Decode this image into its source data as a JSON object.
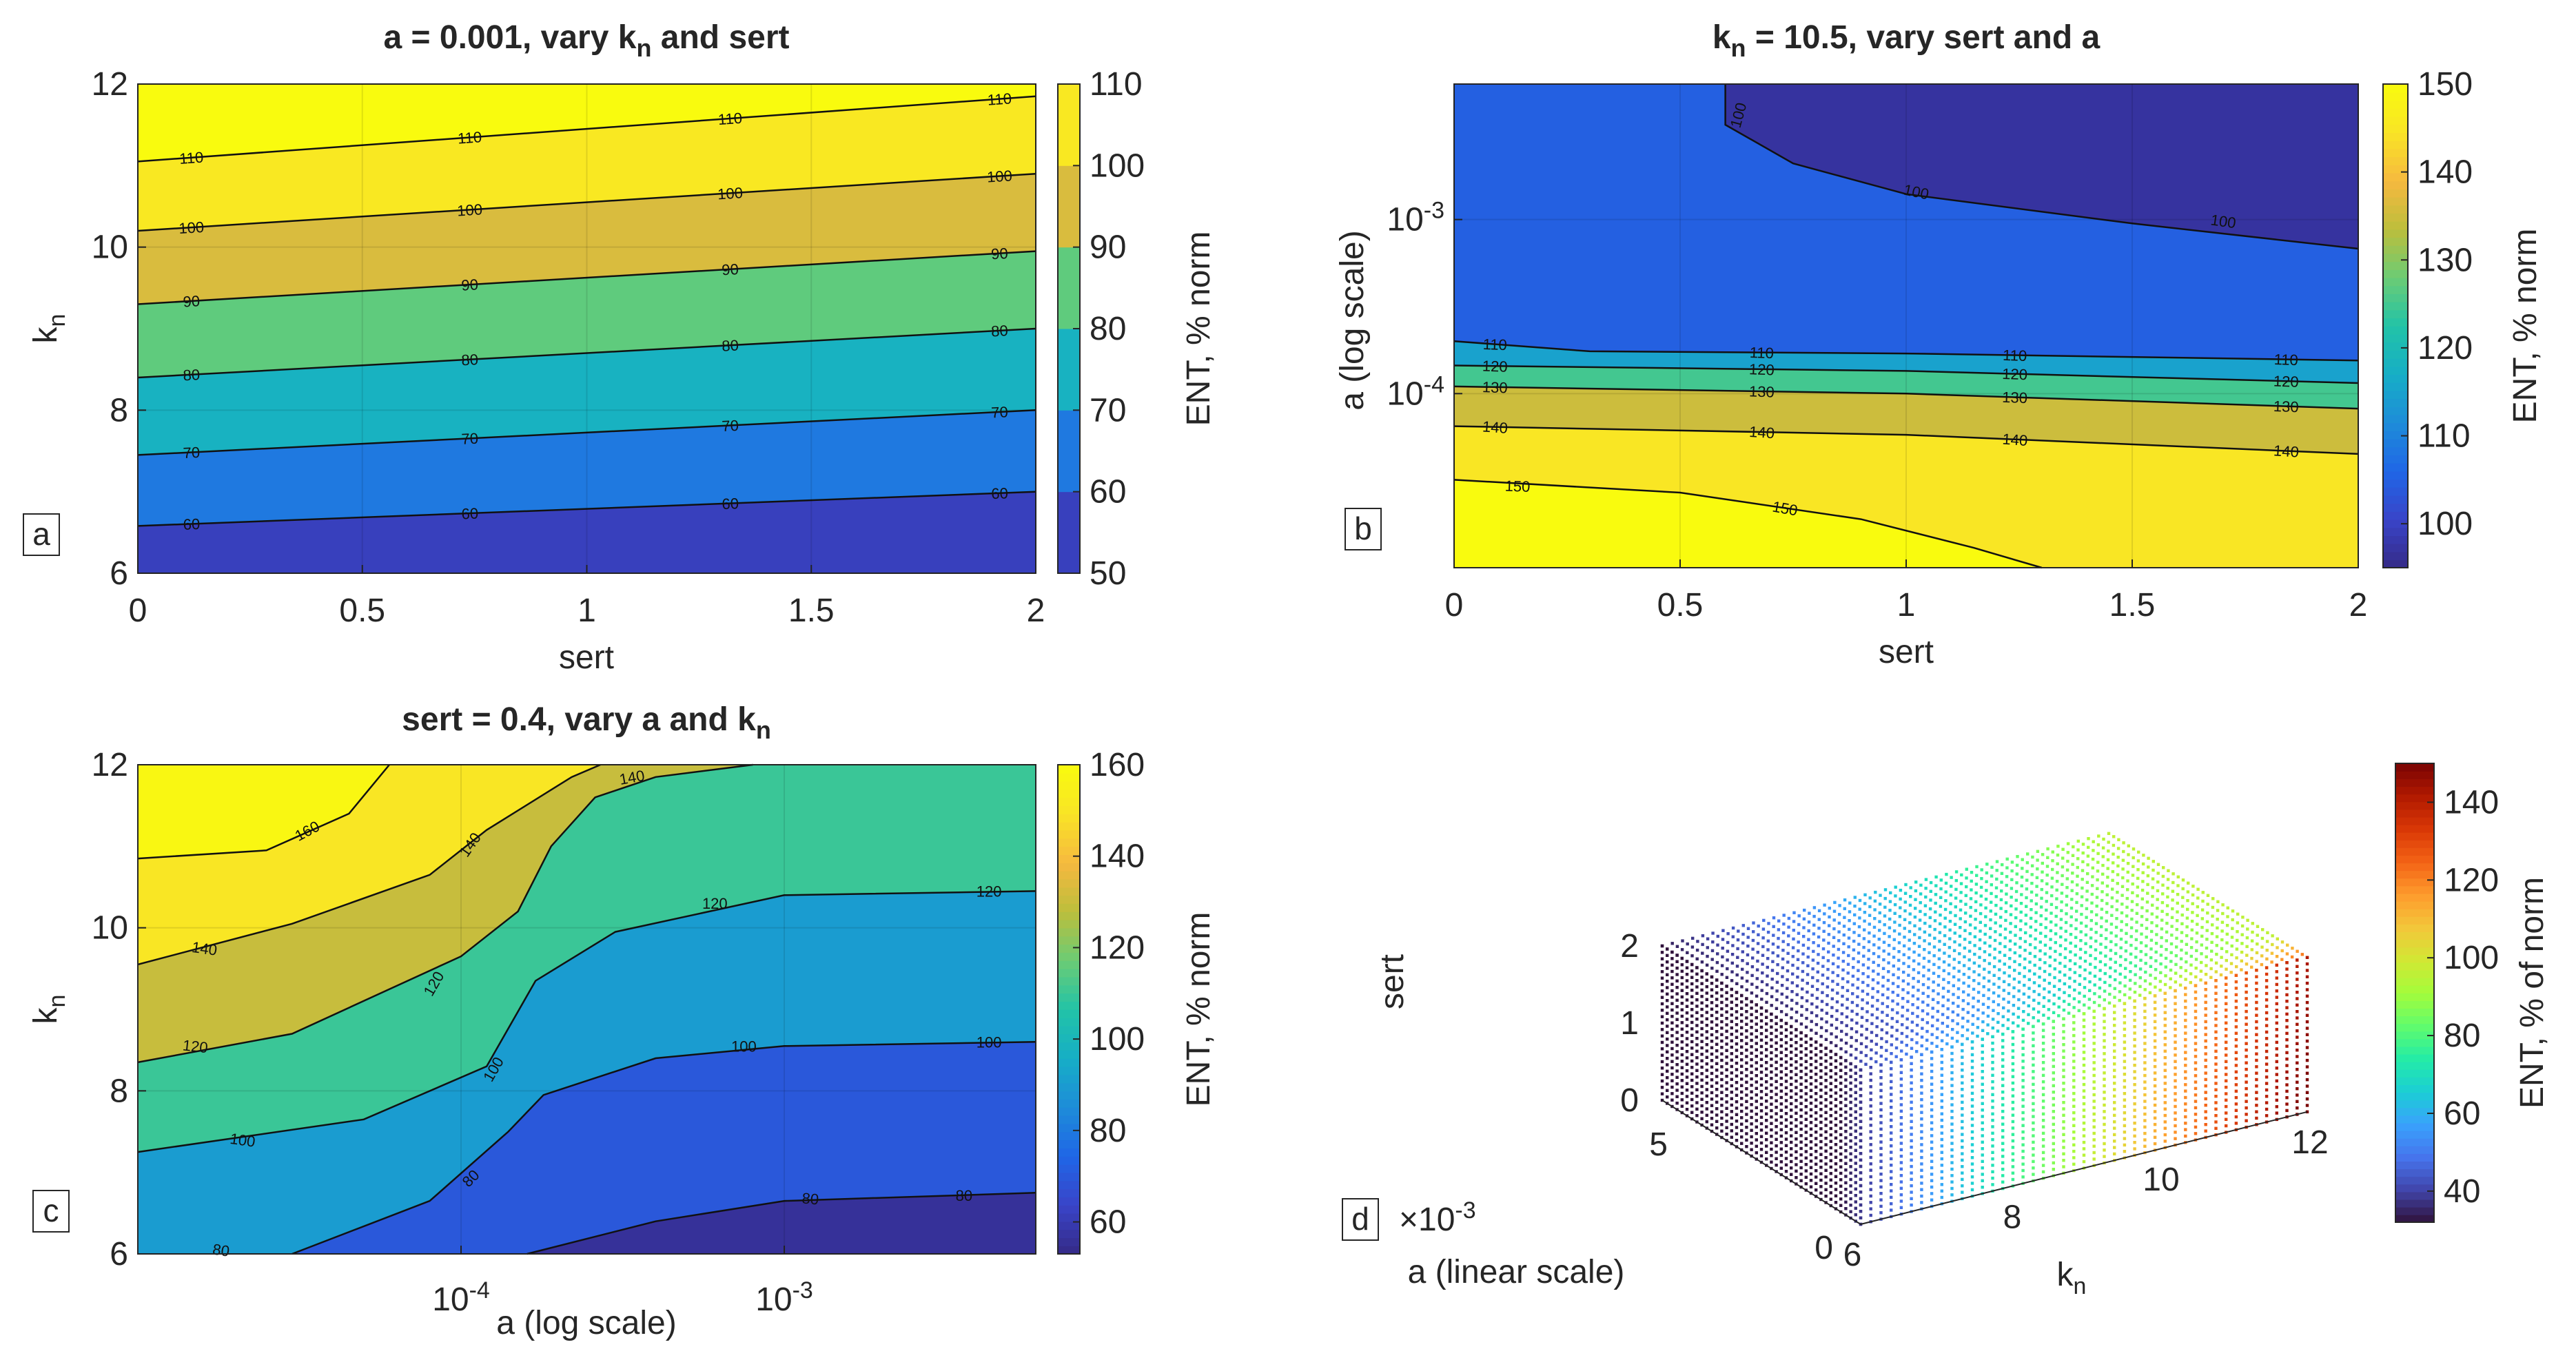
{
  "chart_data": [
    {
      "panel_label": "a",
      "type": "contour",
      "title": {
        "pre": "a = 0.001, vary k",
        "sub": "n",
        "post": " and sert"
      },
      "xlabel": "sert",
      "ylabel": {
        "main": "k",
        "sub": "n"
      },
      "colorbar_label": "ENT, % norm",
      "xlim": [
        0,
        2
      ],
      "ylim": [
        6,
        12
      ],
      "xticks": [
        0,
        0.5,
        1,
        1.5,
        2
      ],
      "xticklabels": [
        "0",
        "0.5",
        "1",
        "1.5",
        "2"
      ],
      "yticks": [
        6,
        8,
        10,
        12
      ],
      "yticklabels": [
        "6",
        "8",
        "10",
        "12"
      ],
      "cbar_range": [
        50,
        110
      ],
      "cbar_ticks": [
        50,
        60,
        70,
        80,
        90,
        100,
        110
      ],
      "cbar_ticklabels": [
        "50",
        "60",
        "70",
        "80",
        "90",
        "100",
        "110"
      ],
      "contour_levels": [
        60,
        70,
        80,
        90,
        100,
        110
      ],
      "contour_labels": [
        "60",
        "70",
        "80",
        "90",
        "100",
        "110"
      ],
      "contour_lines": [
        {
          "level": 60,
          "points": [
            [
              0,
              6.58
            ],
            [
              2,
              7.0
            ]
          ]
        },
        {
          "level": 70,
          "points": [
            [
              0,
              7.45
            ],
            [
              2,
              8.0
            ]
          ]
        },
        {
          "level": 80,
          "points": [
            [
              0,
              8.4
            ],
            [
              2,
              9.0
            ]
          ]
        },
        {
          "level": 90,
          "points": [
            [
              0,
              9.3
            ],
            [
              2,
              9.95
            ]
          ]
        },
        {
          "level": 100,
          "points": [
            [
              0,
              10.2
            ],
            [
              2,
              10.9
            ]
          ]
        },
        {
          "level": 110,
          "points": [
            [
              0,
              11.05
            ],
            [
              2,
              11.85
            ]
          ]
        }
      ]
    },
    {
      "panel_label": "b",
      "type": "contour",
      "title": {
        "pre": "k",
        "sub": "n",
        "post": " = 10.5, vary sert and a"
      },
      "xlabel": "sert",
      "ylabel": "a (log scale)",
      "colorbar_label": "ENT, % norm",
      "xlim": [
        0,
        2
      ],
      "ylim": [
        1e-05,
        0.006
      ],
      "yscale": "log",
      "xticks": [
        0,
        0.5,
        1,
        1.5,
        2
      ],
      "xticklabels": [
        "0",
        "0.5",
        "1",
        "1.5",
        "2"
      ],
      "yticks": [
        0.0001,
        0.001
      ],
      "yticklabels": [
        {
          "base": "10",
          "exp": "-4"
        },
        {
          "base": "10",
          "exp": "-3"
        }
      ],
      "cbar_range": [
        95,
        150
      ],
      "cbar_ticks": [
        100,
        110,
        120,
        130,
        140,
        150
      ],
      "cbar_ticklabels": [
        "100",
        "110",
        "120",
        "130",
        "140",
        "150"
      ],
      "contour_levels": [
        100,
        110,
        120,
        130,
        140,
        150
      ],
      "contour_labels": [
        "100",
        "110",
        "120",
        "130",
        "140",
        "150"
      ],
      "contour_lines": [
        {
          "level": 150,
          "points": [
            [
              0,
              3.2e-05
            ],
            [
              0.5,
              2.7e-05
            ],
            [
              0.9,
              1.9e-05
            ],
            [
              1.15,
              1.3e-05
            ],
            [
              1.3,
              1e-05
            ]
          ]
        },
        {
          "level": 140,
          "points": [
            [
              0,
              6.5e-05
            ],
            [
              1,
              5.8e-05
            ],
            [
              2,
              4.5e-05
            ]
          ]
        },
        {
          "level": 130,
          "points": [
            [
              0,
              0.00011
            ],
            [
              1,
              0.0001
            ],
            [
              2,
              8.2e-05
            ]
          ]
        },
        {
          "level": 120,
          "points": [
            [
              0,
              0.000145
            ],
            [
              1,
              0.000135
            ],
            [
              2,
              0.000115
            ]
          ]
        },
        {
          "level": 110,
          "points": [
            [
              0,
              0.0002
            ],
            [
              0.3,
              0.000175
            ],
            [
              1,
              0.00017
            ],
            [
              2,
              0.000155
            ]
          ]
        },
        {
          "level": 100,
          "points": [
            [
              0.6,
              0.006
            ],
            [
              0.6,
              0.0035
            ],
            [
              0.75,
              0.0021
            ],
            [
              1.0,
              0.0014
            ],
            [
              1.5,
              0.00095
            ],
            [
              2,
              0.00068
            ]
          ]
        }
      ]
    },
    {
      "panel_label": "c",
      "type": "contour",
      "title": {
        "pre": "sert = 0.4, vary a and k",
        "sub": "n",
        "post": ""
      },
      "xlabel": "a (log scale)",
      "ylabel": {
        "main": "k",
        "sub": "n"
      },
      "colorbar_label": "ENT, % norm",
      "xlim": [
        1e-05,
        0.006
      ],
      "xscale": "log",
      "ylim": [
        6,
        12
      ],
      "xticks": [
        0.0001,
        0.001
      ],
      "xticklabels": [
        {
          "base": "10",
          "exp": "-4"
        },
        {
          "base": "10",
          "exp": "-3"
        }
      ],
      "yticks": [
        6,
        8,
        10,
        12
      ],
      "yticklabels": [
        "6",
        "8",
        "10",
        "12"
      ],
      "cbar_range": [
        53,
        160
      ],
      "cbar_ticks": [
        60,
        80,
        100,
        120,
        140,
        160
      ],
      "cbar_ticklabels": [
        "60",
        "80",
        "100",
        "120",
        "140",
        "160"
      ],
      "contour_levels": [
        60,
        80,
        100,
        120,
        140,
        160
      ],
      "contour_labels": [
        "60",
        "80",
        "100",
        "120",
        "140",
        "160"
      ],
      "contour_lines": [
        {
          "level": 160,
          "points": [
            [
              1e-05,
              10.85
            ],
            [
              2.5e-05,
              10.95
            ],
            [
              4.5e-05,
              11.4
            ],
            [
              6e-05,
              12
            ]
          ]
        },
        {
          "level": 140,
          "points": [
            [
              1e-05,
              9.55
            ],
            [
              3e-05,
              10.05
            ],
            [
              8e-05,
              10.65
            ],
            [
              0.00012,
              11.2
            ],
            [
              0.00022,
              11.85
            ],
            [
              0.00027,
              12
            ]
          ]
        },
        {
          "level": 120,
          "points": [
            [
              1e-05,
              8.35
            ],
            [
              3e-05,
              8.7
            ],
            [
              0.0001,
              9.65
            ],
            [
              0.00015,
              10.2
            ],
            [
              0.00019,
              11.0
            ],
            [
              0.00026,
              11.6
            ],
            [
              0.0004,
              11.85
            ],
            [
              0.0008,
              12
            ]
          ]
        },
        {
          "level": 100,
          "points": [
            [
              1e-05,
              7.25
            ],
            [
              5e-05,
              7.65
            ],
            [
              0.00012,
              8.3
            ],
            [
              0.00017,
              9.35
            ],
            [
              0.0003,
              9.95
            ],
            [
              0.001,
              10.4
            ],
            [
              0.006,
              10.45
            ]
          ]
        },
        {
          "level": 80,
          "points": [
            [
              3e-05,
              6
            ],
            [
              8e-05,
              6.65
            ],
            [
              0.00014,
              7.5
            ],
            [
              0.00018,
              7.95
            ],
            [
              0.0004,
              8.4
            ],
            [
              0.001,
              8.55
            ],
            [
              0.006,
              8.6
            ]
          ]
        },
        {
          "level": 60,
          "points": [
            [
              0.00016,
              6
            ],
            [
              0.0004,
              6.4
            ],
            [
              0.001,
              6.65
            ],
            [
              0.006,
              6.75
            ]
          ]
        }
      ]
    },
    {
      "panel_label": "d",
      "type": "scatter3d",
      "xlabel": "a (linear scale)",
      "x_exponent": {
        "pre": "×10",
        "exp": "-3"
      },
      "ylabel": {
        "main": "k",
        "sub": "n"
      },
      "zlabel": "sert",
      "colorbar_label": "ENT, % of norm",
      "xlim": [
        0,
        6
      ],
      "ylim": [
        6,
        12
      ],
      "zlim": [
        0,
        2
      ],
      "xticks": [
        0,
        5
      ],
      "xticklabels": [
        "0",
        "5"
      ],
      "yticks": [
        6,
        8,
        10,
        12
      ],
      "yticklabels": [
        "6",
        "8",
        "10",
        "12"
      ],
      "zticks": [
        0,
        1,
        2
      ],
      "zticklabels": [
        "0",
        "1",
        "2"
      ],
      "cbar_range": [
        32,
        150
      ],
      "cbar_ticks": [
        40,
        60,
        80,
        100,
        120,
        140
      ],
      "cbar_ticklabels": [
        "40",
        "60",
        "80",
        "100",
        "120",
        "140"
      ]
    }
  ],
  "colormaps": {
    "parula": [
      "#352a87",
      "#3944c8",
      "#1f66e6",
      "#1e8cd9",
      "#16aec6",
      "#22c3a7",
      "#6bcc75",
      "#bcbe3c",
      "#f6b93f",
      "#f9e426",
      "#f9fb0e"
    ],
    "turbo": [
      "#30123b",
      "#4145ab",
      "#4675ed",
      "#39a2fc",
      "#1bcfd4",
      "#24eca6",
      "#61fc6c",
      "#a4fc3b",
      "#d1e834",
      "#f3c63a",
      "#fe9b2d",
      "#f36315",
      "#d93806",
      "#b11901",
      "#7a0403"
    ]
  }
}
